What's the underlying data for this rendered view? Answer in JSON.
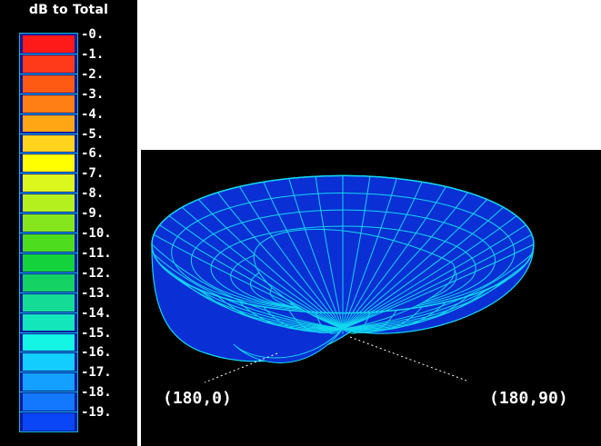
{
  "legend": {
    "title": "dB to Total",
    "ticks": [
      "-0.",
      "-1.",
      "-2.",
      "-3.",
      "-4.",
      "-5.",
      "-6.",
      "-7.",
      "-8.",
      "-9.",
      "-10.",
      "-11.",
      "-12.",
      "-13.",
      "-14.",
      "-15.",
      "-16.",
      "-17.",
      "-18.",
      "-19."
    ],
    "colors": [
      "#ff1a1a",
      "#ff3a1a",
      "#ff5a14",
      "#ff7f14",
      "#ffa614",
      "#ffd21e",
      "#ffff00",
      "#dcf71e",
      "#b4f01e",
      "#86e61e",
      "#4ddc1e",
      "#14d23c",
      "#14d264",
      "#14dc96",
      "#14e6bc",
      "#14f5e6",
      "#14cdff",
      "#14a0ff",
      "#1478ff",
      "#0a46f5"
    ]
  },
  "plot": {
    "surface_fill": "#0a2fd4",
    "mesh_color": "#11d6ef",
    "axis_labels": {
      "left": "(180,0)",
      "right": "(180,90)"
    }
  }
}
